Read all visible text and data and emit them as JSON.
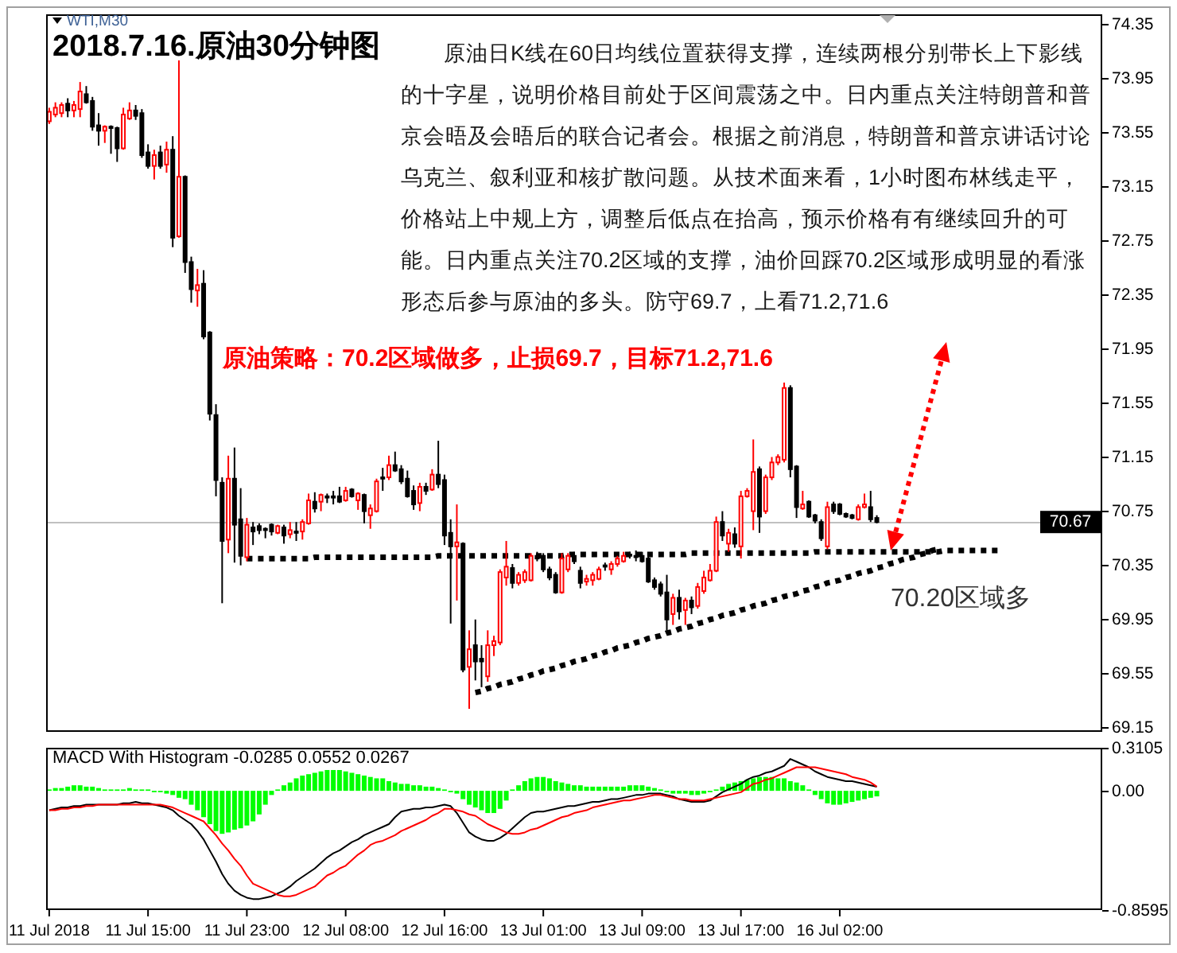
{
  "chart_data": [
    {
      "type": "candlestick",
      "title": "2018.7.16.原油30分钟图",
      "subtitle": "WTI,M30",
      "annotations": [
        "原油日K线在60日均线位置获得支撑，连续两根分别带长上下影线的十字星，说明价格目前处于区间震荡之中。日内重点关注特朗普和普京会晤及会晤后的联合记者会。根据之前消息，特朗普和普京讲话讨论乌克兰、叙利亚和核扩散问题。从技术面来看，1小时图布林线走平，价格站上中规上方，调整后低点在抬高，预示价格有有继续回升的可能。日内重点关注70.2区域的支撑，油价回踩70.2区域形成明显的看涨形态后参与原油的多头。防守69.7，上看71.2,71.6",
        "原油策略：70.2区域做多，止损69.7，目标71.2,71.6",
        "70.20区域多"
      ],
      "categories": [
        null,
        null,
        null,
        null,
        null,
        null,
        null,
        null,
        null,
        null,
        null,
        null,
        null,
        null,
        null,
        null,
        null,
        null,
        null,
        null,
        null,
        null,
        null,
        null,
        null,
        null,
        null,
        null,
        null,
        null,
        null,
        null,
        null,
        null,
        null,
        null,
        null,
        null,
        null,
        null,
        null,
        null,
        null,
        null,
        null,
        null,
        null,
        null,
        null,
        null,
        null,
        null,
        null,
        null,
        null,
        null,
        null,
        null,
        null,
        null,
        null,
        null,
        null,
        null,
        null,
        null,
        null,
        null,
        null,
        null,
        null,
        null,
        null,
        null,
        null,
        null,
        null,
        null,
        null,
        null,
        null,
        null,
        null,
        null,
        null,
        null,
        null,
        null,
        null,
        null,
        null,
        null,
        null,
        null,
        null,
        null,
        null,
        null,
        null,
        null,
        null,
        null,
        null,
        null,
        null,
        null,
        null,
        null,
        null,
        null,
        null,
        null,
        null,
        null,
        null,
        null,
        null,
        null,
        null,
        null,
        null,
        null,
        null,
        null,
        null,
        null,
        null,
        null,
        null,
        null,
        null,
        null,
        null,
        null,
        null,
        null,
        null,
        null,
        null,
        null,
        null,
        null,
        null,
        null,
        null,
        null,
        null,
        null,
        null,
        null,
        null,
        null,
        null,
        null,
        null,
        null,
        null,
        null,
        null,
        null,
        null,
        null,
        null,
        null,
        null,
        null,
        null,
        null,
        null,
        null,
        null
      ],
      "ohlc": [
        [
          73.63,
          73.73,
          73.61,
          73.7
        ],
        [
          73.68,
          73.77,
          73.66,
          73.73
        ],
        [
          73.69,
          73.77,
          73.66,
          73.75
        ],
        [
          73.76,
          73.8,
          73.66,
          73.71
        ],
        [
          73.71,
          73.78,
          73.66,
          73.75
        ],
        [
          73.72,
          73.92,
          73.66,
          73.85
        ],
        [
          73.83,
          73.89,
          73.76,
          73.77
        ],
        [
          73.78,
          73.81,
          73.56,
          73.59
        ],
        [
          73.6,
          73.69,
          73.45,
          73.56
        ],
        [
          73.56,
          73.6,
          73.47,
          73.59
        ],
        [
          73.59,
          73.6,
          73.39,
          73.58
        ],
        [
          73.58,
          73.59,
          73.33,
          73.43
        ],
        [
          73.43,
          73.73,
          73.42,
          73.68
        ],
        [
          73.65,
          73.77,
          73.64,
          73.71
        ],
        [
          73.71,
          73.75,
          73.64,
          73.67
        ],
        [
          73.69,
          73.72,
          73.36,
          73.38
        ],
        [
          73.4,
          73.46,
          73.28,
          73.3
        ],
        [
          73.3,
          73.42,
          73.2,
          73.38
        ],
        [
          73.4,
          73.45,
          73.28,
          73.3
        ],
        [
          73.31,
          73.48,
          73.25,
          73.42
        ],
        [
          73.42,
          73.52,
          72.7,
          72.77
        ],
        [
          72.78,
          74.08,
          72.77,
          73.22
        ],
        [
          73.22,
          73.23,
          72.51,
          72.59
        ],
        [
          72.59,
          72.63,
          72.29,
          72.39
        ],
        [
          72.38,
          72.54,
          72.26,
          72.42
        ],
        [
          72.43,
          72.53,
          72.02,
          72.04
        ],
        [
          72.07,
          72.08,
          71.42,
          71.47
        ],
        [
          71.46,
          71.54,
          70.86,
          70.98
        ],
        [
          70.96,
          71.0,
          70.07,
          70.53
        ],
        [
          70.54,
          71.16,
          70.44,
          70.99
        ],
        [
          70.99,
          71.22,
          70.37,
          70.65
        ],
        [
          70.69,
          70.92,
          70.35,
          70.42
        ],
        [
          70.41,
          70.7,
          70.38,
          70.65
        ],
        [
          70.63,
          70.67,
          70.5,
          70.6
        ],
        [
          70.64,
          70.66,
          70.58,
          70.61
        ],
        [
          70.62,
          70.63,
          70.55,
          70.61
        ],
        [
          70.65,
          70.66,
          70.57,
          70.6
        ],
        [
          70.59,
          70.65,
          70.58,
          70.64
        ],
        [
          70.63,
          70.65,
          70.51,
          70.57
        ],
        [
          70.58,
          70.67,
          70.55,
          70.61
        ],
        [
          70.6,
          70.67,
          70.53,
          70.59
        ],
        [
          70.6,
          70.69,
          70.54,
          70.67
        ],
        [
          70.66,
          70.88,
          70.65,
          70.83
        ],
        [
          70.82,
          70.89,
          70.74,
          70.77
        ],
        [
          70.82,
          70.88,
          70.75,
          70.87
        ],
        [
          70.86,
          70.88,
          70.81,
          70.85
        ],
        [
          70.86,
          70.9,
          70.8,
          70.85
        ],
        [
          70.86,
          70.93,
          70.81,
          70.82
        ],
        [
          70.83,
          70.93,
          70.82,
          70.9
        ],
        [
          70.91,
          70.92,
          70.85,
          70.86
        ],
        [
          70.83,
          70.89,
          70.76,
          70.88
        ],
        [
          70.87,
          70.88,
          70.66,
          70.75
        ],
        [
          70.72,
          70.8,
          70.62,
          70.77
        ],
        [
          70.75,
          70.99,
          70.74,
          70.97
        ],
        [
          71.0,
          71.07,
          70.9,
          70.99
        ],
        [
          71.0,
          71.16,
          70.98,
          71.09
        ],
        [
          71.09,
          71.19,
          71.04,
          71.05
        ],
        [
          71.06,
          71.09,
          70.95,
          70.97
        ],
        [
          70.99,
          71.05,
          70.85,
          70.86
        ],
        [
          70.9,
          70.94,
          70.76,
          70.8
        ],
        [
          70.81,
          70.96,
          70.75,
          70.93
        ],
        [
          70.93,
          70.96,
          70.87,
          70.9
        ],
        [
          70.91,
          71.06,
          70.9,
          71.02
        ],
        [
          71.02,
          71.27,
          70.92,
          70.95
        ],
        [
          70.98,
          71.02,
          70.5,
          70.57
        ],
        [
          70.59,
          70.69,
          69.92,
          70.49
        ],
        [
          70.49,
          70.8,
          70.09,
          70.52
        ],
        [
          70.51,
          70.52,
          69.56,
          69.58
        ],
        [
          69.6,
          69.87,
          69.29,
          69.73
        ],
        [
          69.76,
          69.95,
          69.5,
          69.64
        ],
        [
          69.66,
          69.76,
          69.45,
          69.64
        ],
        [
          69.53,
          69.87,
          69.49,
          69.76
        ],
        [
          69.76,
          69.83,
          69.68,
          69.79
        ],
        [
          69.78,
          70.32,
          69.76,
          70.3
        ],
        [
          70.26,
          70.53,
          70.2,
          70.34
        ],
        [
          70.33,
          70.36,
          70.18,
          70.22
        ],
        [
          70.22,
          70.3,
          70.2,
          70.28
        ],
        [
          70.24,
          70.32,
          70.22,
          70.3
        ],
        [
          70.24,
          70.44,
          70.23,
          70.42
        ],
        [
          70.42,
          70.45,
          70.38,
          70.4
        ],
        [
          70.42,
          70.44,
          70.3,
          70.32
        ],
        [
          70.32,
          70.34,
          70.24,
          70.26
        ],
        [
          70.28,
          70.3,
          70.14,
          70.15
        ],
        [
          70.15,
          70.44,
          70.14,
          70.4
        ],
        [
          70.32,
          70.44,
          70.3,
          70.42
        ],
        [
          70.42,
          70.45,
          70.36,
          70.38
        ],
        [
          70.31,
          70.34,
          70.18,
          70.22
        ],
        [
          70.23,
          70.28,
          70.2,
          70.25
        ],
        [
          70.24,
          70.3,
          70.2,
          70.28
        ],
        [
          70.25,
          70.34,
          70.24,
          70.32
        ],
        [
          70.35,
          70.37,
          70.31,
          70.34
        ],
        [
          70.32,
          70.38,
          70.28,
          70.36
        ],
        [
          70.36,
          70.42,
          70.34,
          70.4
        ],
        [
          70.38,
          70.45,
          70.37,
          70.42
        ],
        [
          70.43,
          70.45,
          70.4,
          70.42
        ],
        [
          70.42,
          70.46,
          70.38,
          70.41
        ],
        [
          70.42,
          70.45,
          70.37,
          70.38
        ],
        [
          70.4,
          70.42,
          70.22,
          70.23
        ],
        [
          70.24,
          70.26,
          70.17,
          70.19
        ],
        [
          70.21,
          70.23,
          70.12,
          70.14
        ],
        [
          70.15,
          70.28,
          69.87,
          69.95
        ],
        [
          69.99,
          70.14,
          69.91,
          70.11
        ],
        [
          70.11,
          70.17,
          69.95,
          70.01
        ],
        [
          70.02,
          70.11,
          69.91,
          70.09
        ],
        [
          70.09,
          70.12,
          69.99,
          70.04
        ],
        [
          70.05,
          70.22,
          70.03,
          70.19
        ],
        [
          70.16,
          70.31,
          70.14,
          70.26
        ],
        [
          70.24,
          70.36,
          70.23,
          70.31
        ],
        [
          70.31,
          70.71,
          70.3,
          70.67
        ],
        [
          70.67,
          70.75,
          70.53,
          70.57
        ],
        [
          70.51,
          70.62,
          70.45,
          70.59
        ],
        [
          70.58,
          70.63,
          70.48,
          70.51
        ],
        [
          70.49,
          70.9,
          70.4,
          70.86
        ],
        [
          70.86,
          70.92,
          70.85,
          70.9
        ],
        [
          70.75,
          71.28,
          70.61,
          71.04
        ],
        [
          71.06,
          71.08,
          70.59,
          70.71
        ],
        [
          70.75,
          71.02,
          70.73,
          71.0
        ],
        [
          71.0,
          71.15,
          70.98,
          71.11
        ],
        [
          71.11,
          71.17,
          71.09,
          71.15
        ],
        [
          71.13,
          71.7,
          71.11,
          71.66
        ],
        [
          71.66,
          71.68,
          71.0,
          71.06
        ],
        [
          71.08,
          71.09,
          70.7,
          70.78
        ],
        [
          70.77,
          70.9,
          70.76,
          70.8
        ],
        [
          70.82,
          70.83,
          70.7,
          70.71
        ],
        [
          70.72,
          70.73,
          70.66,
          70.68
        ],
        [
          70.67,
          70.69,
          70.53,
          70.55
        ],
        [
          70.49,
          70.82,
          70.47,
          70.78
        ],
        [
          70.8,
          70.82,
          70.73,
          70.75
        ],
        [
          70.8,
          70.81,
          70.72,
          70.73
        ],
        [
          70.73,
          70.74,
          70.7,
          70.71
        ],
        [
          70.72,
          70.73,
          70.69,
          70.7
        ],
        [
          70.69,
          70.8,
          70.68,
          70.78
        ],
        [
          70.78,
          70.88,
          70.77,
          70.8
        ],
        [
          70.78,
          70.9,
          70.67,
          70.69
        ],
        [
          70.7,
          70.72,
          70.66,
          70.67
        ],
        null,
        null,
        null,
        null,
        null,
        null,
        null,
        null,
        null,
        null,
        null,
        null,
        null,
        null,
        null,
        null,
        null,
        null,
        null,
        null,
        null,
        null,
        null,
        null,
        null,
        null,
        null,
        null,
        null,
        null,
        null,
        null,
        null,
        null,
        null,
        null
      ],
      "colors": [
        "#ff0000",
        "#ff0000",
        "#ff0000",
        "#000000",
        "#ff0000",
        "#ff0000",
        "#000000",
        "#000000",
        "#000000",
        "#ff0000",
        "#000000",
        "#000000",
        "#ff0000",
        "#ff0000",
        "#000000",
        "#000000",
        "#000000",
        "#ff0000",
        "#000000",
        "#ff0000",
        "#000000",
        "#ff0000",
        "#000000",
        "#000000",
        "#ff0000",
        "#000000",
        "#000000",
        "#000000",
        "#000000",
        "#ff0000",
        "#000000",
        "#000000",
        "#ff0000",
        "#000000",
        "#000000",
        "#000000",
        "#000000",
        "#ff0000",
        "#000000",
        "#ff0000",
        "#000000",
        "#ff0000",
        "#ff0000",
        "#000000",
        "#ff0000",
        "#000000",
        "#000000",
        "#000000",
        "#ff0000",
        "#000000",
        "#ff0000",
        "#000000",
        "#ff0000",
        "#ff0000",
        "#000000",
        "#ff0000",
        "#000000",
        "#000000",
        "#000000",
        "#000000",
        "#ff0000",
        "#000000",
        "#ff0000",
        "#000000",
        "#000000",
        "#000000",
        "#ff0000",
        "#000000",
        "#ff0000",
        "#000000",
        "#000000",
        "#ff0000",
        "#ff0000",
        "#ff0000",
        "#ff0000",
        "#000000",
        "#ff0000",
        "#ff0000",
        "#ff0000",
        "#000000",
        "#000000",
        "#000000",
        "#000000",
        "#ff0000",
        "#ff0000",
        "#000000",
        "#000000",
        "#ff0000",
        "#ff0000",
        "#ff0000",
        "#000000",
        "#ff0000",
        "#ff0000",
        "#ff0000",
        "#000000",
        "#000000",
        "#000000",
        "#000000",
        "#000000",
        "#000000",
        "#000000",
        "#ff0000",
        "#000000",
        "#ff0000",
        "#000000",
        "#ff0000",
        "#ff0000",
        "#ff0000",
        "#ff0000",
        "#000000",
        "#ff0000",
        "#000000",
        "#ff0000",
        "#ff0000",
        "#ff0000",
        "#000000",
        "#ff0000",
        "#ff0000",
        "#ff0000",
        "#ff0000",
        "#000000",
        "#000000",
        "#ff0000",
        "#000000",
        "#000000",
        "#000000",
        "#ff0000",
        "#000000",
        "#000000",
        "#000000",
        "#000000",
        "#ff0000",
        "#ff0000",
        "#000000",
        "#000000",
        null,
        null,
        null,
        null,
        null,
        null,
        null,
        null,
        null,
        null,
        null,
        null,
        null,
        null,
        null,
        null,
        null,
        null,
        null,
        null,
        null,
        null,
        null,
        null,
        null,
        null,
        null,
        null,
        null,
        null,
        null,
        null,
        null,
        null,
        null,
        null
      ],
      "series": [
        {
          "type": "line",
          "color": "#000000",
          "line_style": "dotted",
          "values": [
            null,
            null,
            null,
            null,
            null,
            null,
            null,
            null,
            null,
            null,
            null,
            null,
            null,
            null,
            null,
            null,
            null,
            null,
            null,
            null,
            null,
            null,
            null,
            null,
            null,
            null,
            null,
            null,
            null,
            null,
            null,
            null,
            70.4,
            70.4,
            70.4,
            70.4,
            70.4,
            70.4,
            70.4,
            70.4,
            70.4,
            70.4,
            70.4,
            70.41,
            70.41,
            70.41,
            70.41,
            70.41,
            70.41,
            70.41,
            70.41,
            70.41,
            70.41,
            70.41,
            70.41,
            70.41,
            70.41,
            70.41,
            70.41,
            70.41,
            70.41,
            70.41,
            70.41,
            70.42,
            70.42,
            70.42,
            70.42,
            70.42,
            70.42,
            70.42,
            70.42,
            70.42,
            70.42,
            70.42,
            70.42,
            70.42,
            70.42,
            70.42,
            70.42,
            70.42,
            70.42,
            70.42,
            70.42,
            70.42,
            70.43,
            70.43,
            70.43,
            70.43,
            70.43,
            70.43,
            70.43,
            70.43,
            70.43,
            70.43,
            70.43,
            70.43,
            70.43,
            70.43,
            70.43,
            70.43,
            70.43,
            70.43,
            70.43,
            70.43,
            70.44,
            70.44,
            70.44,
            70.44,
            70.44,
            70.44,
            70.44,
            70.44,
            70.44,
            70.44,
            70.44,
            70.44,
            70.44,
            70.44,
            70.44,
            70.44,
            70.44,
            70.44,
            70.44,
            70.44,
            70.45,
            70.45,
            70.45,
            70.45,
            70.45,
            70.45,
            70.45,
            70.45,
            70.45,
            70.45,
            70.45,
            70.45,
            70.45,
            70.45,
            70.45,
            70.45,
            70.45,
            70.45,
            70.45,
            70.45,
            70.45,
            70.46,
            70.46,
            70.46,
            70.46,
            70.46,
            70.46,
            70.46,
            70.46,
            70.46,
            70.46,
            null,
            null,
            null,
            null,
            null,
            null,
            null,
            null,
            null,
            null,
            null,
            null,
            null,
            null,
            null,
            null
          ]
        },
        {
          "type": "line",
          "color": "#000000",
          "line_style": "dotted",
          "values": [
            null,
            null,
            null,
            null,
            null,
            null,
            null,
            null,
            null,
            null,
            null,
            null,
            null,
            null,
            null,
            null,
            null,
            null,
            null,
            null,
            null,
            null,
            null,
            null,
            null,
            null,
            null,
            null,
            null,
            null,
            null,
            null,
            null,
            null,
            null,
            null,
            null,
            null,
            null,
            null,
            null,
            null,
            null,
            null,
            null,
            null,
            null,
            null,
            null,
            null,
            null,
            null,
            null,
            null,
            null,
            null,
            null,
            null,
            null,
            null,
            null,
            null,
            null,
            null,
            null,
            null,
            null,
            null,
            null,
            69.41,
            69.42,
            69.44,
            69.45,
            69.47,
            69.48,
            69.49,
            69.51,
            69.52,
            69.54,
            69.55,
            69.57,
            69.58,
            69.59,
            69.61,
            69.62,
            69.64,
            69.65,
            69.66,
            69.68,
            69.69,
            69.71,
            69.72,
            69.74,
            69.75,
            69.76,
            69.78,
            69.79,
            69.81,
            69.82,
            69.83,
            69.85,
            69.86,
            69.88,
            69.89,
            69.9,
            69.92,
            69.93,
            69.95,
            69.96,
            69.98,
            69.99,
            70.0,
            70.02,
            70.03,
            70.05,
            70.06,
            70.07,
            70.09,
            70.1,
            70.12,
            70.13,
            70.14,
            70.16,
            70.17,
            70.19,
            70.2,
            70.22,
            70.23,
            70.24,
            70.26,
            70.27,
            70.29,
            70.3,
            70.31,
            70.33,
            70.34,
            70.36,
            70.37,
            70.39,
            70.4,
            70.41,
            70.43,
            70.44,
            70.46,
            70.47,
            null,
            null,
            null,
            null,
            null,
            null,
            null,
            null,
            null,
            null,
            null,
            null,
            null,
            null,
            null,
            null,
            null,
            null,
            null,
            null,
            null,
            null,
            null,
            null,
            null,
            null
          ]
        }
      ],
      "ref_lines": [
        {
          "axis": "y",
          "value": 70.67,
          "label": "70.67",
          "color": "#c0c0c0"
        }
      ],
      "ylim": [
        69.12,
        74.42
      ],
      "yticks": [
        74.35,
        73.95,
        73.55,
        73.15,
        72.75,
        72.35,
        71.95,
        71.55,
        71.15,
        70.75,
        70.35,
        69.95,
        69.55,
        69.15
      ]
    },
    {
      "type": "bar",
      "title": "MACD With Histogram -0.0285 0.0552 0.0267",
      "categories": [
        "11 Jul 2018",
        null,
        null,
        null,
        null,
        null,
        null,
        null,
        null,
        null,
        null,
        null,
        null,
        null,
        null,
        null,
        "11 Jul 15:00",
        null,
        null,
        null,
        null,
        null,
        null,
        null,
        null,
        null,
        null,
        null,
        null,
        null,
        null,
        null,
        "11 Jul 23:00",
        null,
        null,
        null,
        null,
        null,
        null,
        null,
        null,
        null,
        null,
        null,
        null,
        null,
        null,
        null,
        "12 Jul 08:00",
        null,
        null,
        null,
        null,
        null,
        null,
        null,
        null,
        null,
        null,
        null,
        null,
        null,
        null,
        null,
        "12 Jul 16:00",
        null,
        null,
        null,
        null,
        null,
        null,
        null,
        null,
        null,
        null,
        null,
        null,
        null,
        null,
        null,
        "13 Jul 01:00",
        null,
        null,
        null,
        null,
        null,
        null,
        null,
        null,
        null,
        null,
        null,
        null,
        null,
        null,
        null,
        "13 Jul 09:00",
        null,
        null,
        null,
        null,
        null,
        null,
        null,
        null,
        null,
        null,
        null,
        null,
        null,
        null,
        null,
        "13 Jul 17:00",
        null,
        null,
        null,
        null,
        null,
        null,
        null,
        null,
        null,
        null,
        null,
        null,
        null,
        null,
        null,
        "16 Jul 02:00",
        null,
        null,
        null,
        null,
        null,
        null,
        null,
        null,
        null,
        null,
        null,
        null,
        null,
        null,
        null,
        null,
        null,
        null,
        null,
        null,
        null,
        null,
        null,
        null,
        null,
        null,
        null,
        null,
        null,
        null,
        null,
        null,
        null,
        null,
        null,
        null,
        null,
        null,
        null,
        null,
        null,
        null
      ],
      "series": [
        {
          "type": "bar",
          "color": "#00ff00",
          "values": [
            0.01,
            0.02,
            0.02,
            0.03,
            0.04,
            0.04,
            0.03,
            0.03,
            0.02,
            0.01,
            0.01,
            0.01,
            0.01,
            0.02,
            0.01,
            0.01,
            0.01,
            -0.01,
            -0.01,
            -0.02,
            -0.03,
            -0.05,
            -0.06,
            -0.1,
            -0.14,
            -0.19,
            -0.24,
            -0.29,
            -0.31,
            -0.3,
            -0.28,
            -0.27,
            -0.25,
            -0.22,
            -0.17,
            -0.1,
            -0.03,
            0.01,
            0.04,
            0.06,
            0.09,
            0.11,
            0.12,
            0.13,
            0.14,
            0.15,
            0.15,
            0.15,
            0.14,
            0.13,
            0.12,
            0.11,
            0.1,
            0.09,
            0.09,
            0.07,
            0.06,
            0.05,
            0.05,
            0.04,
            0.04,
            0.03,
            0.03,
            0.02,
            0.01,
            -0.01,
            -0.02,
            -0.06,
            -0.1,
            -0.12,
            -0.14,
            -0.16,
            -0.16,
            -0.13,
            -0.07,
            0.01,
            0.04,
            0.07,
            0.09,
            0.1,
            0.1,
            0.09,
            0.07,
            0.06,
            0.05,
            0.04,
            0.04,
            0.03,
            0.03,
            0.03,
            0.03,
            0.03,
            0.03,
            0.03,
            0.04,
            0.04,
            0.04,
            0.03,
            0.02,
            0.01,
            -0.01,
            -0.02,
            -0.02,
            -0.02,
            -0.03,
            -0.03,
            -0.02,
            -0.01,
            0.01,
            0.03,
            0.05,
            0.06,
            0.07,
            0.08,
            0.09,
            0.1,
            0.1,
            0.1,
            0.09,
            0.09,
            0.07,
            0.06,
            0.04,
            0.01,
            -0.03,
            -0.06,
            -0.09,
            -0.1,
            -0.1,
            -0.09,
            -0.08,
            -0.07,
            -0.06,
            -0.05,
            -0.04,
            null,
            null,
            null,
            null,
            null,
            null,
            null,
            null,
            null,
            null,
            null,
            null,
            null,
            null,
            null,
            null,
            null,
            null,
            null,
            null,
            null,
            null,
            null,
            null,
            null,
            null,
            null,
            null,
            null,
            null,
            null,
            null,
            null,
            null,
            null,
            null
          ]
        },
        {
          "type": "line",
          "color": "#000000",
          "values": [
            -0.14,
            -0.13,
            -0.12,
            -0.12,
            -0.11,
            -0.11,
            -0.1,
            -0.1,
            -0.1,
            -0.1,
            -0.1,
            -0.1,
            -0.09,
            -0.09,
            -0.08,
            -0.09,
            -0.09,
            -0.1,
            -0.11,
            -0.12,
            -0.14,
            -0.18,
            -0.21,
            -0.24,
            -0.29,
            -0.35,
            -0.43,
            -0.51,
            -0.6,
            -0.67,
            -0.72,
            -0.75,
            -0.77,
            -0.78,
            -0.78,
            -0.77,
            -0.76,
            -0.74,
            -0.72,
            -0.69,
            -0.65,
            -0.62,
            -0.59,
            -0.56,
            -0.52,
            -0.48,
            -0.45,
            -0.43,
            -0.4,
            -0.37,
            -0.35,
            -0.32,
            -0.3,
            -0.28,
            -0.26,
            -0.24,
            -0.19,
            -0.15,
            -0.14,
            -0.13,
            -0.13,
            -0.12,
            -0.12,
            -0.11,
            -0.1,
            -0.11,
            -0.16,
            -0.23,
            -0.3,
            -0.33,
            -0.35,
            -0.36,
            -0.36,
            -0.34,
            -0.31,
            -0.27,
            -0.23,
            -0.19,
            -0.16,
            -0.15,
            -0.15,
            -0.14,
            -0.13,
            -0.12,
            -0.11,
            -0.11,
            -0.1,
            -0.09,
            -0.08,
            -0.08,
            -0.07,
            -0.06,
            -0.06,
            -0.05,
            -0.04,
            -0.03,
            -0.03,
            -0.02,
            -0.02,
            -0.02,
            -0.03,
            -0.04,
            -0.06,
            -0.07,
            -0.08,
            -0.08,
            -0.08,
            -0.07,
            -0.04,
            -0.01,
            0.01,
            0.03,
            0.05,
            0.08,
            0.1,
            0.11,
            0.13,
            0.14,
            0.16,
            0.18,
            0.23,
            0.21,
            0.19,
            0.17,
            0.14,
            0.12,
            0.1,
            0.09,
            0.08,
            0.07,
            0.07,
            0.06,
            0.05,
            0.04,
            0.03,
            null,
            null,
            null,
            null,
            null,
            null,
            null,
            null,
            null,
            null,
            null,
            null,
            null,
            null,
            null,
            null,
            null,
            null,
            null,
            null,
            null,
            null,
            null,
            null,
            null,
            null,
            null,
            null,
            null,
            null,
            null,
            null,
            null,
            null,
            null,
            null
          ]
        },
        {
          "type": "line",
          "color": "#ff0000",
          "values": [
            -0.14,
            -0.14,
            -0.13,
            -0.13,
            -0.12,
            -0.12,
            -0.11,
            -0.11,
            -0.1,
            -0.1,
            -0.1,
            -0.1,
            -0.1,
            -0.1,
            -0.1,
            -0.1,
            -0.1,
            -0.1,
            -0.1,
            -0.11,
            -0.12,
            -0.14,
            -0.16,
            -0.18,
            -0.2,
            -0.22,
            -0.27,
            -0.32,
            -0.38,
            -0.43,
            -0.49,
            -0.54,
            -0.61,
            -0.67,
            -0.69,
            -0.71,
            -0.73,
            -0.75,
            -0.76,
            -0.76,
            -0.75,
            -0.73,
            -0.71,
            -0.69,
            -0.65,
            -0.61,
            -0.59,
            -0.56,
            -0.54,
            -0.5,
            -0.46,
            -0.43,
            -0.39,
            -0.37,
            -0.36,
            -0.34,
            -0.32,
            -0.29,
            -0.27,
            -0.25,
            -0.23,
            -0.21,
            -0.18,
            -0.16,
            -0.13,
            -0.13,
            -0.14,
            -0.15,
            -0.17,
            -0.18,
            -0.21,
            -0.24,
            -0.26,
            -0.28,
            -0.3,
            -0.31,
            -0.31,
            -0.3,
            -0.28,
            -0.27,
            -0.25,
            -0.23,
            -0.21,
            -0.19,
            -0.18,
            -0.16,
            -0.15,
            -0.14,
            -0.12,
            -0.11,
            -0.1,
            -0.09,
            -0.08,
            -0.07,
            -0.07,
            -0.06,
            -0.05,
            -0.04,
            -0.03,
            -0.03,
            -0.04,
            -0.05,
            -0.06,
            -0.06,
            -0.07,
            -0.07,
            -0.07,
            -0.06,
            -0.05,
            -0.04,
            -0.03,
            -0.02,
            -0.01,
            0.02,
            0.05,
            0.06,
            0.08,
            0.09,
            0.11,
            0.13,
            0.15,
            0.17,
            0.17,
            0.17,
            0.17,
            0.16,
            0.15,
            0.14,
            0.13,
            0.12,
            0.1,
            0.09,
            0.08,
            0.06,
            0.03,
            null,
            null,
            null,
            null,
            null,
            null,
            null,
            null,
            null,
            null,
            null,
            null,
            null,
            null,
            null,
            null,
            null,
            null,
            null,
            null,
            null,
            null,
            null,
            null,
            null,
            null,
            null,
            null,
            null,
            null,
            null,
            null,
            null,
            null,
            null,
            null
          ]
        }
      ],
      "ylim": [
        -0.8595,
        0.3105
      ],
      "yticks": [
        0.3105,
        {
          "value": 0,
          "label": "0.00"
        },
        -0.8595
      ]
    }
  ]
}
